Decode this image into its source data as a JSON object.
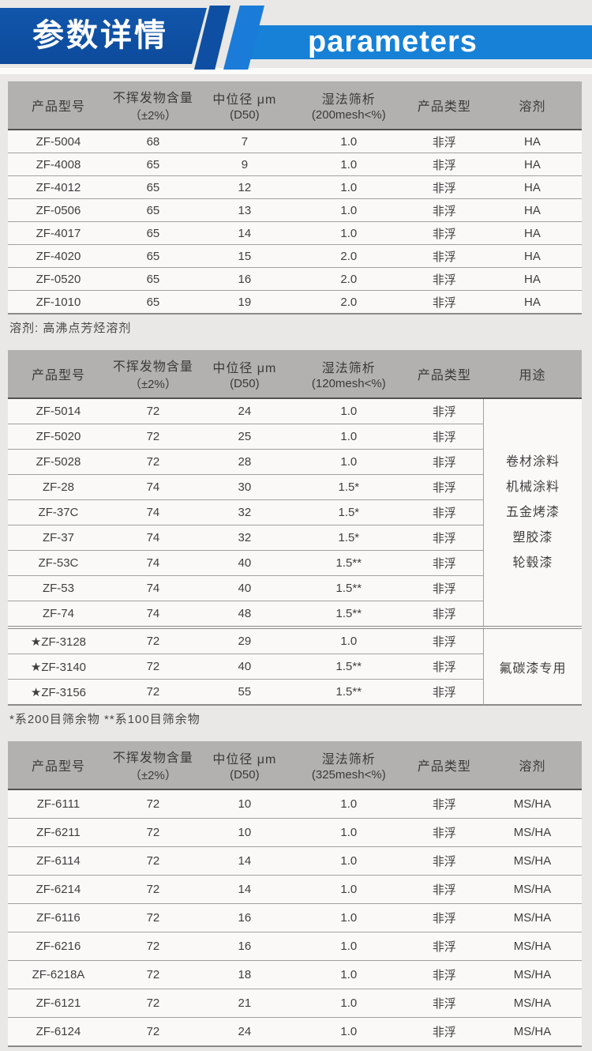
{
  "banner": {
    "title_cn": "参数详情",
    "title_en": "parameters",
    "dark_blue": "#0d4a9c",
    "light_blue": "#1681d6"
  },
  "tables": [
    {
      "headers": [
        [
          "产品型号",
          ""
        ],
        [
          "不挥发物含量",
          "（±2%）"
        ],
        [
          "中位径 μm",
          "(D50)"
        ],
        [
          "湿法筛析",
          "(200mesh<%)"
        ],
        [
          "产品类型",
          ""
        ],
        [
          "溶剂",
          ""
        ]
      ],
      "rows": [
        [
          "ZF-5004",
          "68",
          "7",
          "1.0",
          "非浮",
          "HA"
        ],
        [
          "ZF-4008",
          "65",
          "9",
          "1.0",
          "非浮",
          "HA"
        ],
        [
          "ZF-4012",
          "65",
          "12",
          "1.0",
          "非浮",
          "HA"
        ],
        [
          "ZF-0506",
          "65",
          "13",
          "1.0",
          "非浮",
          "HA"
        ],
        [
          "ZF-4017",
          "65",
          "14",
          "1.0",
          "非浮",
          "HA"
        ],
        [
          "ZF-4020",
          "65",
          "15",
          "2.0",
          "非浮",
          "HA"
        ],
        [
          "ZF-0520",
          "65",
          "16",
          "2.0",
          "非浮",
          "HA"
        ],
        [
          "ZF-1010",
          "65",
          "19",
          "2.0",
          "非浮",
          "HA"
        ]
      ],
      "note": "溶剂: 高沸点芳烃溶剂"
    },
    {
      "headers": [
        [
          "产品型号",
          ""
        ],
        [
          "不挥发物含量",
          "（±2%）"
        ],
        [
          "中位径 μm",
          "(D50)"
        ],
        [
          "湿法筛析",
          "(120mesh<%)"
        ],
        [
          "产品类型",
          ""
        ],
        [
          "用途",
          ""
        ]
      ],
      "groups": [
        {
          "rows": [
            [
              "ZF-5014",
              "72",
              "24",
              "1.0",
              "非浮"
            ],
            [
              "ZF-5020",
              "72",
              "25",
              "1.0",
              "非浮"
            ],
            [
              "ZF-5028",
              "72",
              "28",
              "1.0",
              "非浮"
            ],
            [
              "ZF-28",
              "74",
              "30",
              "1.5*",
              "非浮"
            ],
            [
              "ZF-37C",
              "74",
              "32",
              "1.5*",
              "非浮"
            ],
            [
              "ZF-37",
              "74",
              "32",
              "1.5*",
              "非浮"
            ],
            [
              "ZF-53C",
              "74",
              "40",
              "1.5**",
              "非浮"
            ],
            [
              "ZF-53",
              "74",
              "40",
              "1.5**",
              "非浮"
            ],
            [
              "ZF-74",
              "74",
              "48",
              "1.5**",
              "非浮"
            ]
          ],
          "usage_lines": [
            "卷材涂料",
            "机械涂料",
            "五金烤漆",
            "塑胶漆",
            "轮毂漆"
          ]
        },
        {
          "rows": [
            [
              "★ZF-3128",
              "72",
              "29",
              "1.0",
              "非浮"
            ],
            [
              "★ZF-3140",
              "72",
              "40",
              "1.5**",
              "非浮"
            ],
            [
              "★ZF-3156",
              "72",
              "55",
              "1.5**",
              "非浮"
            ]
          ],
          "usage_lines": [
            "氟碳漆专用"
          ]
        }
      ],
      "note": "*系200目筛余物  **系100目筛余物"
    },
    {
      "headers": [
        [
          "产品型号",
          ""
        ],
        [
          "不挥发物含量",
          "（±2%）"
        ],
        [
          "中位径 μm",
          "(D50)"
        ],
        [
          "湿法筛析",
          "(325mesh<%)"
        ],
        [
          "产品类型",
          ""
        ],
        [
          "溶剂",
          ""
        ]
      ],
      "rows": [
        [
          "ZF-6111",
          "72",
          "10",
          "1.0",
          "非浮",
          "MS/HA"
        ],
        [
          "ZF-6211",
          "72",
          "10",
          "1.0",
          "非浮",
          "MS/HA"
        ],
        [
          "ZF-6114",
          "72",
          "14",
          "1.0",
          "非浮",
          "MS/HA"
        ],
        [
          "ZF-6214",
          "72",
          "14",
          "1.0",
          "非浮",
          "MS/HA"
        ],
        [
          "ZF-6116",
          "72",
          "16",
          "1.0",
          "非浮",
          "MS/HA"
        ],
        [
          "ZF-6216",
          "72",
          "16",
          "1.0",
          "非浮",
          "MS/HA"
        ],
        [
          "ZF-6218A",
          "72",
          "18",
          "1.0",
          "非浮",
          "MS/HA"
        ],
        [
          "ZF-6121",
          "72",
          "21",
          "1.0",
          "非浮",
          "MS/HA"
        ],
        [
          "ZF-6124",
          "72",
          "24",
          "1.0",
          "非浮",
          "MS/HA"
        ]
      ]
    }
  ]
}
